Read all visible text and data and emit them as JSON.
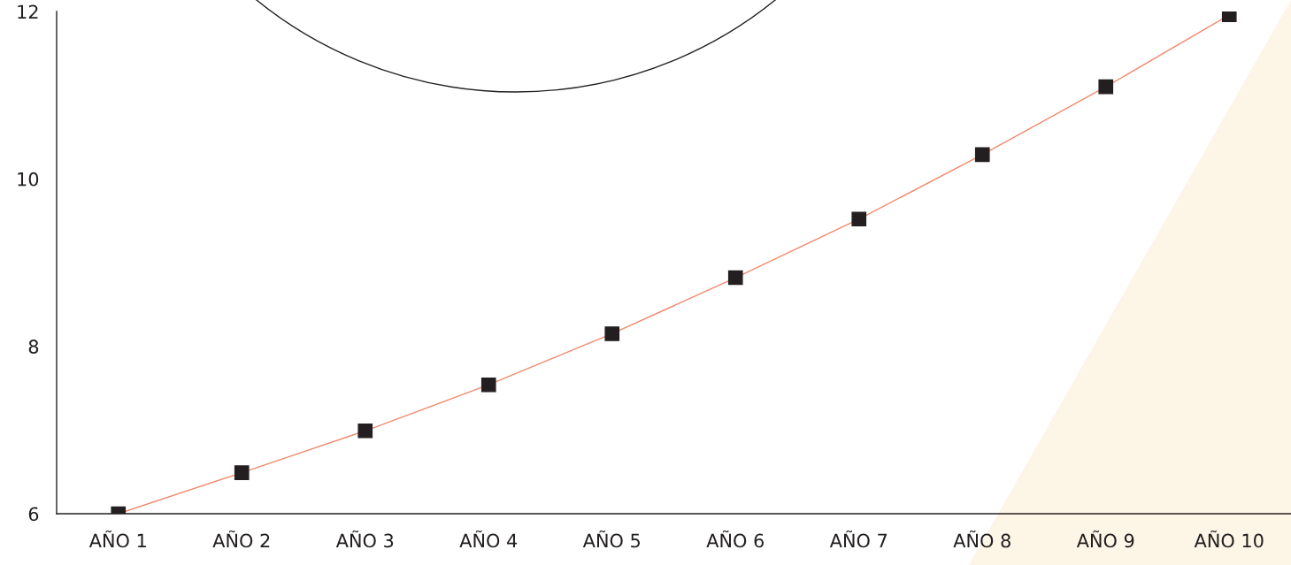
{
  "chart_data": {
    "type": "line",
    "categories": [
      "AÑO 1",
      "AÑO 2",
      "AÑO 3",
      "AÑO 4",
      "AÑO 5",
      "AÑO 6",
      "AÑO 7",
      "AÑO 8",
      "AÑO 9",
      "AÑO 10"
    ],
    "series": [
      {
        "color": "#f08a6e",
        "values": [
          6.0,
          6.49,
          6.99,
          7.54,
          8.15,
          8.82,
          9.52,
          10.29,
          11.1,
          11.96
        ]
      }
    ],
    "ylim": [
      6,
      12
    ],
    "yticks": [
      6,
      8,
      10,
      12
    ],
    "grid": false,
    "legend": false,
    "marker": "square",
    "line_style": "solid"
  }
}
